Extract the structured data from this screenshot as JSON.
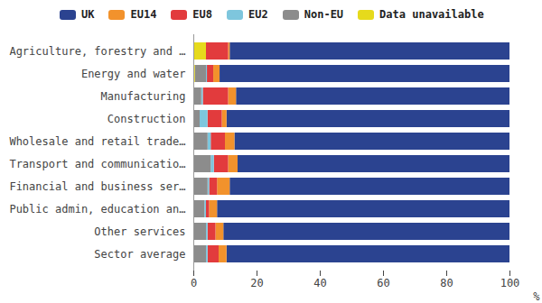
{
  "chart_data": {
    "type": "bar",
    "orientation": "horizontal",
    "stacked": true,
    "grid": false,
    "legend": "top",
    "categories": [
      "Agriculture, forestry and …",
      "Energy and water",
      "Manufacturing",
      "Construction",
      "Wholesale and retail trade…",
      "Transport and communicatio…",
      "Financial and business ser…",
      "Public admin, education an…",
      "Other services",
      "Sector average"
    ],
    "series": [
      {
        "name": "UK",
        "color": "#2b4390",
        "values": [
          88.5,
          91.7,
          86.5,
          89.5,
          87,
          86,
          88.5,
          92.5,
          90.5,
          89.5
        ]
      },
      {
        "name": "EU14",
        "color": "#f2922c",
        "values": [
          0.5,
          2,
          2.5,
          1.5,
          3,
          3,
          4,
          2.5,
          2.5,
          2.5
        ]
      },
      {
        "name": "EU8",
        "color": "#e23b3d",
        "values": [
          7,
          2,
          8,
          4.5,
          4.5,
          4.5,
          2.5,
          1,
          2.5,
          3.5
        ]
      },
      {
        "name": "EU2",
        "color": "#7ec6dd",
        "values": [
          0,
          0.3,
          0.5,
          2.5,
          1,
          1,
          0.5,
          0.5,
          0.5,
          0.5
        ]
      },
      {
        "name": "Non-EU",
        "color": "#8c8c8c",
        "values": [
          0,
          3.5,
          2.5,
          2,
          4.5,
          5.5,
          4.5,
          3.5,
          4,
          4
        ]
      },
      {
        "name": "Data unavailable",
        "color": "#e6da1c",
        "values": [
          4,
          0.5,
          0,
          0,
          0,
          0,
          0,
          0,
          0,
          0
        ]
      }
    ],
    "xlabel": "%",
    "xlim": [
      0,
      100
    ],
    "xticks": [
      0,
      20,
      40,
      60,
      80,
      100
    ]
  }
}
